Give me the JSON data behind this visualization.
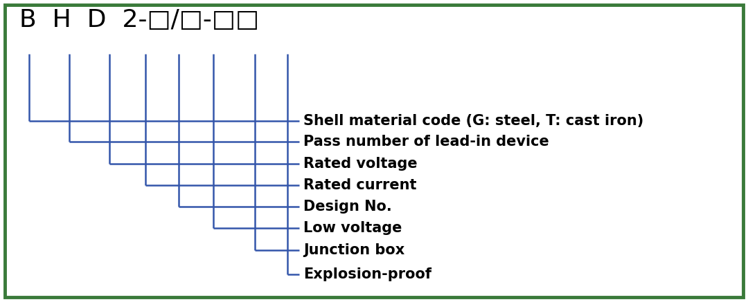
{
  "title_text": "B  H  D  2-□/□-□□",
  "labels": [
    "Shell material code (G: steel, T: cast iron)",
    "Pass number of lead-in device",
    "Rated voltage",
    "Rated current",
    "Design No.",
    "Low voltage",
    "Junction box",
    "Explosion-proof"
  ],
  "line_color": "#3355aa",
  "text_color": "#000000",
  "border_color": "#3a7a3a",
  "bg_color": "#ffffff",
  "title_fontsize": 26,
  "label_fontsize": 15,
  "fig_width": 10.8,
  "fig_height": 4.37,
  "dpi": 100
}
